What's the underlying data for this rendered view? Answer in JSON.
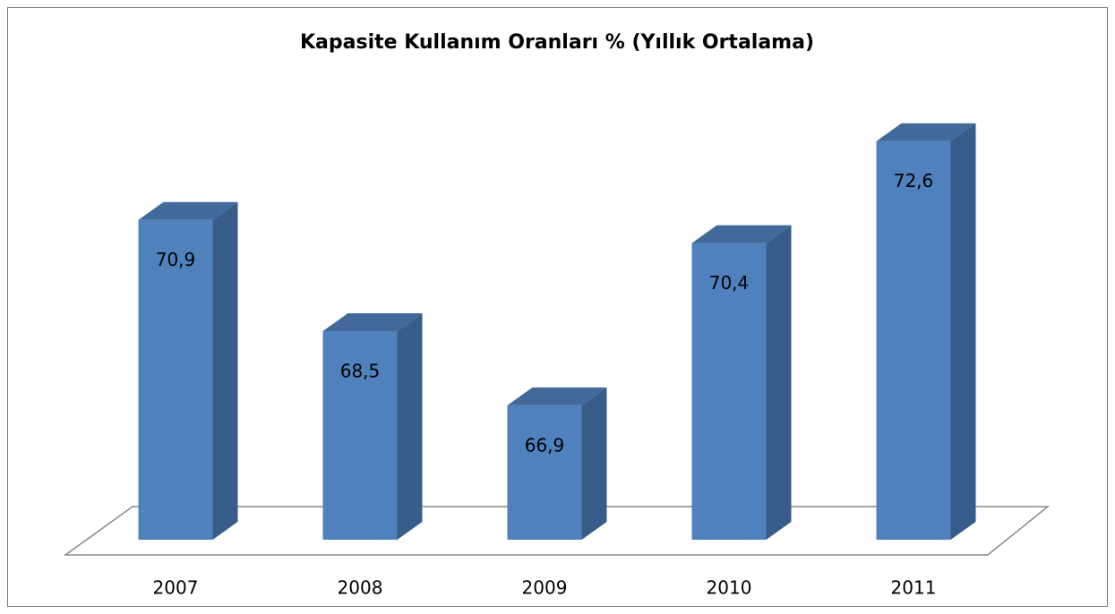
{
  "chart_data": {
    "type": "bar3d",
    "title": "Kapasite Kullanım Oranları % (Yıllık Ortalama)",
    "categories": [
      "2007",
      "2008",
      "2009",
      "2010",
      "2011"
    ],
    "values": [
      70.9,
      68.5,
      66.9,
      70.4,
      72.6
    ],
    "value_labels": [
      "70,9",
      "68,5",
      "66,9",
      "70,4",
      "72,6"
    ],
    "color": "#4f81bd",
    "ylim": [
      64,
      73
    ]
  }
}
